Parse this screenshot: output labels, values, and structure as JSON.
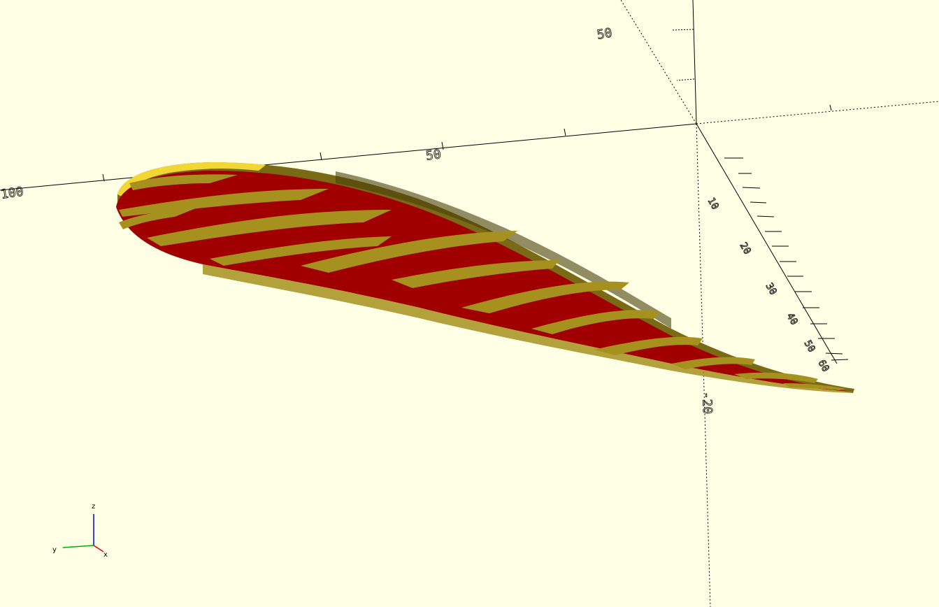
{
  "viewport": {
    "background_color": "#ffffe5",
    "model": {
      "name": "airfoil",
      "top_face_color": "#a00000",
      "top_stripe_color": "#a6911f",
      "rim_color": "#6b5d14",
      "rim_highlight_color": "#f2d633",
      "rim_shadow_color": "#3d3408"
    },
    "axes": {
      "axis_color": "#000000",
      "x_axis_label": "X",
      "y_axis_label": "Y",
      "z_axis_label": "Z",
      "x_tick_labels": [
        "100",
        "50"
      ],
      "y_tick_labels": [
        "10",
        "20",
        "30",
        "40",
        "50",
        "60"
      ],
      "negative_z_tick_label": "-20",
      "z_tick_label": "50"
    },
    "axis_gizmo": {
      "x_label": "x",
      "y_label": "y",
      "z_label": "z",
      "x_color": "#e00000",
      "y_color": "#00b000",
      "z_color": "#0000e0"
    }
  }
}
